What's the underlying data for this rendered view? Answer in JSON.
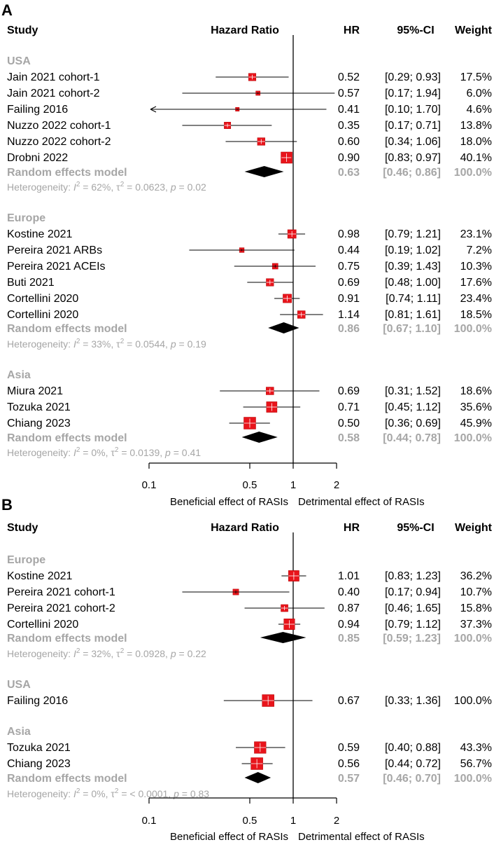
{
  "chart_data": [
    {
      "type": "forest",
      "panel": "A",
      "headers": {
        "study": "Study",
        "hazard_ratio": "Hazard Ratio",
        "hr": "HR",
        "ci": "95%-CI",
        "weight": "Weight"
      },
      "axis": {
        "ticks": [
          "0.1",
          "0.5",
          "1",
          "2"
        ],
        "tick_values": [
          0.1,
          0.5,
          1,
          2
        ],
        "xlim": [
          0.1,
          2
        ],
        "scale": "log",
        "null_value": 1
      },
      "direction_labels": {
        "left": "Beneficial effect of RASIs",
        "right": "Detrimental effect of RASIs"
      },
      "groups": [
        {
          "name": "USA",
          "studies": [
            {
              "label": "Jain 2021 cohort-1",
              "hr": 0.52,
              "lo": 0.29,
              "hi": 0.93,
              "hr_text": "0.52",
              "ci_text": "[0.29; 0.93]",
              "weight_text": "17.5%"
            },
            {
              "label": "Jain 2021 cohort-2",
              "hr": 0.57,
              "lo": 0.17,
              "hi": 1.94,
              "hr_text": "0.57",
              "ci_text": "[0.17; 1.94]",
              "weight_text": "6.0%"
            },
            {
              "label": "Failing 2016",
              "hr": 0.41,
              "lo": 0.1,
              "hi": 1.7,
              "hr_text": "0.41",
              "ci_text": "[0.10; 1.70]",
              "weight_text": "4.6%"
            },
            {
              "label": "Nuzzo 2022 cohort-1",
              "hr": 0.35,
              "lo": 0.17,
              "hi": 0.71,
              "hr_text": "0.35",
              "ci_text": "[0.17; 0.71]",
              "weight_text": "13.8%"
            },
            {
              "label": "Nuzzo 2022 cohort-2",
              "hr": 0.6,
              "lo": 0.34,
              "hi": 1.06,
              "hr_text": "0.60",
              "ci_text": "[0.34; 1.06]",
              "weight_text": "18.0%"
            },
            {
              "label": "Drobni 2022",
              "hr": 0.9,
              "lo": 0.83,
              "hi": 0.97,
              "hr_text": "0.90",
              "ci_text": "[0.83; 0.97]",
              "weight_text": "40.1%"
            }
          ],
          "pooled": {
            "label": "Random effects model",
            "hr": 0.63,
            "lo": 0.46,
            "hi": 0.86,
            "hr_text": "0.63",
            "ci_text": "[0.46; 0.86]",
            "weight_text": "100.0%"
          },
          "heterogeneity": {
            "prefix": "Heterogeneity: ",
            "i2_label": "I",
            "i2_value": " = 62%, ",
            "tau2_label": "τ",
            "tau2_value": " = 0.0623, ",
            "p_label": "p",
            "p_value": " = 0.02"
          }
        },
        {
          "name": "Europe",
          "studies": [
            {
              "label": "Kostine 2021",
              "hr": 0.98,
              "lo": 0.79,
              "hi": 1.21,
              "hr_text": "0.98",
              "ci_text": "[0.79; 1.21]",
              "weight_text": "23.1%"
            },
            {
              "label": "Pereira 2021 ARBs",
              "hr": 0.44,
              "lo": 0.19,
              "hi": 1.02,
              "hr_text": "0.44",
              "ci_text": "[0.19; 1.02]",
              "weight_text": "7.2%"
            },
            {
              "label": "Pereira 2021 ACEIs",
              "hr": 0.75,
              "lo": 0.39,
              "hi": 1.43,
              "hr_text": "0.75",
              "ci_text": "[0.39; 1.43]",
              "weight_text": "10.3%"
            },
            {
              "label": "Buti 2021",
              "hr": 0.69,
              "lo": 0.48,
              "hi": 1.0,
              "hr_text": "0.69",
              "ci_text": "[0.48; 1.00]",
              "weight_text": "17.6%"
            },
            {
              "label": "Cortellini 2020",
              "hr": 0.91,
              "lo": 0.74,
              "hi": 1.11,
              "hr_text": "0.91",
              "ci_text": "[0.74; 1.11]",
              "weight_text": "23.4%"
            },
            {
              "label": "Cortellini 2020",
              "hr": 1.14,
              "lo": 0.81,
              "hi": 1.61,
              "hr_text": "1.14",
              "ci_text": "[0.81; 1.61]",
              "weight_text": "18.5%"
            }
          ],
          "pooled": {
            "label": "Random effects model",
            "hr": 0.86,
            "lo": 0.67,
            "hi": 1.1,
            "hr_text": "0.86",
            "ci_text": "[0.67; 1.10]",
            "weight_text": "100.0%"
          },
          "heterogeneity": {
            "prefix": "Heterogeneity: ",
            "i2_label": "I",
            "i2_value": " = 33%, ",
            "tau2_label": "τ",
            "tau2_value": " = 0.0544, ",
            "p_label": "p",
            "p_value": " = 0.19"
          }
        },
        {
          "name": "Asia",
          "studies": [
            {
              "label": "Miura 2021",
              "hr": 0.69,
              "lo": 0.31,
              "hi": 1.52,
              "hr_text": "0.69",
              "ci_text": "[0.31; 1.52]",
              "weight_text": "18.6%"
            },
            {
              "label": "Tozuka 2021",
              "hr": 0.71,
              "lo": 0.45,
              "hi": 1.12,
              "hr_text": "0.71",
              "ci_text": "[0.45; 1.12]",
              "weight_text": "35.6%"
            },
            {
              "label": "Chiang 2023",
              "hr": 0.5,
              "lo": 0.36,
              "hi": 0.69,
              "hr_text": "0.50",
              "ci_text": "[0.36; 0.69]",
              "weight_text": "45.9%"
            }
          ],
          "pooled": {
            "label": "Random effects model",
            "hr": 0.58,
            "lo": 0.44,
            "hi": 0.78,
            "hr_text": "0.58",
            "ci_text": "[0.44; 0.78]",
            "weight_text": "100.0%"
          },
          "heterogeneity": {
            "prefix": "Heterogeneity: ",
            "i2_label": "I",
            "i2_value": " = 0%, ",
            "tau2_label": "τ",
            "tau2_value": " = 0.0139, ",
            "p_label": "p",
            "p_value": " = 0.41"
          }
        }
      ]
    },
    {
      "type": "forest",
      "panel": "B",
      "headers": {
        "study": "Study",
        "hazard_ratio": "Hazard Ratio",
        "hr": "HR",
        "ci": "95%-CI",
        "weight": "Weight"
      },
      "axis": {
        "ticks": [
          "0.1",
          "0.5",
          "1",
          "2"
        ],
        "tick_values": [
          0.1,
          0.5,
          1,
          2
        ],
        "xlim": [
          0.1,
          2
        ],
        "scale": "log",
        "null_value": 1
      },
      "direction_labels": {
        "left": "Beneficial effect of RASIs",
        "right": "Detrimental effect of RASIs"
      },
      "groups": [
        {
          "name": "Europe",
          "studies": [
            {
              "label": "Kostine 2021",
              "hr": 1.01,
              "lo": 0.83,
              "hi": 1.23,
              "hr_text": "1.01",
              "ci_text": "[0.83; 1.23]",
              "weight_text": "36.2%"
            },
            {
              "label": "Pereira 2021 cohort-1",
              "hr": 0.4,
              "lo": 0.17,
              "hi": 0.94,
              "hr_text": "0.40",
              "ci_text": "[0.17; 0.94]",
              "weight_text": "10.7%"
            },
            {
              "label": "Pereira 2021 cohort-2",
              "hr": 0.87,
              "lo": 0.46,
              "hi": 1.65,
              "hr_text": "0.87",
              "ci_text": "[0.46; 1.65]",
              "weight_text": "15.8%"
            },
            {
              "label": "Cortellini 2020",
              "hr": 0.94,
              "lo": 0.79,
              "hi": 1.12,
              "hr_text": "0.94",
              "ci_text": "[0.79; 1.12]",
              "weight_text": "37.3%"
            }
          ],
          "pooled": {
            "label": "Random effects model",
            "hr": 0.85,
            "lo": 0.59,
            "hi": 1.23,
            "hr_text": "0.85",
            "ci_text": "[0.59; 1.23]",
            "weight_text": "100.0%"
          },
          "heterogeneity": {
            "prefix": "Heterogeneity: ",
            "i2_label": "I",
            "i2_value": " = 32%, ",
            "tau2_label": "τ",
            "tau2_value": " = 0.0928, ",
            "p_label": "p",
            "p_value": " = 0.22"
          }
        },
        {
          "name": "USA",
          "studies": [
            {
              "label": "Failing 2016",
              "hr": 0.67,
              "lo": 0.33,
              "hi": 1.36,
              "hr_text": "0.67",
              "ci_text": "[0.33; 1.36]",
              "weight_text": "100.0%"
            }
          ]
        },
        {
          "name": "Asia",
          "studies": [
            {
              "label": "Tozuka 2021",
              "hr": 0.59,
              "lo": 0.4,
              "hi": 0.88,
              "hr_text": "0.59",
              "ci_text": "[0.40; 0.88]",
              "weight_text": "43.3%"
            },
            {
              "label": "Chiang 2023",
              "hr": 0.56,
              "lo": 0.44,
              "hi": 0.72,
              "hr_text": "0.56",
              "ci_text": "[0.44; 0.72]",
              "weight_text": "56.7%"
            }
          ],
          "pooled": {
            "label": "Random effects model",
            "hr": 0.57,
            "lo": 0.46,
            "hi": 0.7,
            "hr_text": "0.57",
            "ci_text": "[0.46; 0.70]",
            "weight_text": "100.0%"
          },
          "heterogeneity": {
            "prefix": "Heterogeneity: ",
            "i2_label": "I",
            "i2_value": " = 0%, ",
            "tau2_label": "τ",
            "tau2_value": " = < 0.0001, ",
            "p_label": "p",
            "p_value": " = 0.83"
          }
        }
      ]
    }
  ],
  "colors": {
    "marker": "#e8141b",
    "marker_edge": "#b30000",
    "diamond": "#000000",
    "group_text": "#a6a6a6",
    "line": "#000000"
  }
}
